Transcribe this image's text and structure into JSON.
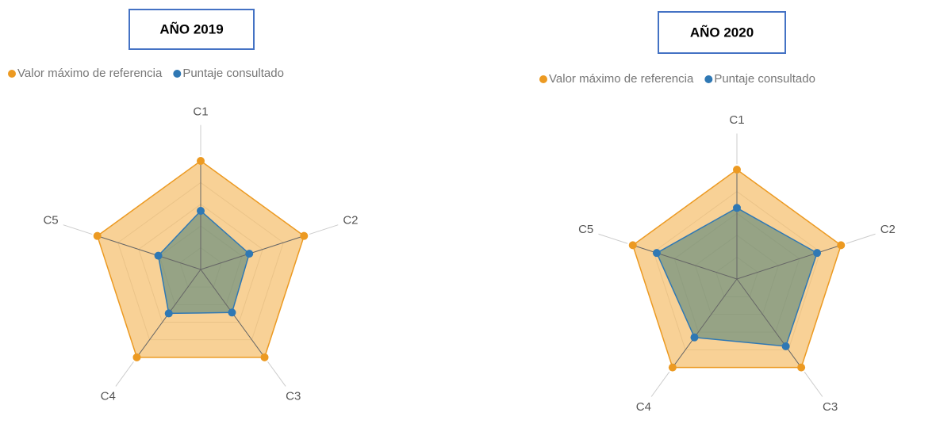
{
  "chart_data": [
    {
      "type": "radar",
      "title": "AÑO 2019",
      "categories": [
        "C1",
        "C2",
        "C3",
        "C4",
        "C5"
      ],
      "rlim": [
        0,
        100
      ],
      "series": [
        {
          "name": "Valor máximo de referencia",
          "color": "#ec9a22",
          "values": [
            100,
            100,
            100,
            100,
            100
          ]
        },
        {
          "name": "Puntaje consultado",
          "color": "#2f78b4",
          "values": [
            54,
            47,
            49,
            50,
            41
          ]
        }
      ]
    },
    {
      "type": "radar",
      "title": "AÑO 2020",
      "categories": [
        "C1",
        "C2",
        "C3",
        "C4",
        "C5"
      ],
      "rlim": [
        0,
        100
      ],
      "series": [
        {
          "name": "Valor máximo de referencia",
          "color": "#ec9a22",
          "values": [
            100,
            100,
            100,
            100,
            100
          ]
        },
        {
          "name": "Puntaje consultado",
          "color": "#2f78b4",
          "values": [
            65,
            77,
            76,
            66,
            77
          ]
        }
      ]
    }
  ]
}
